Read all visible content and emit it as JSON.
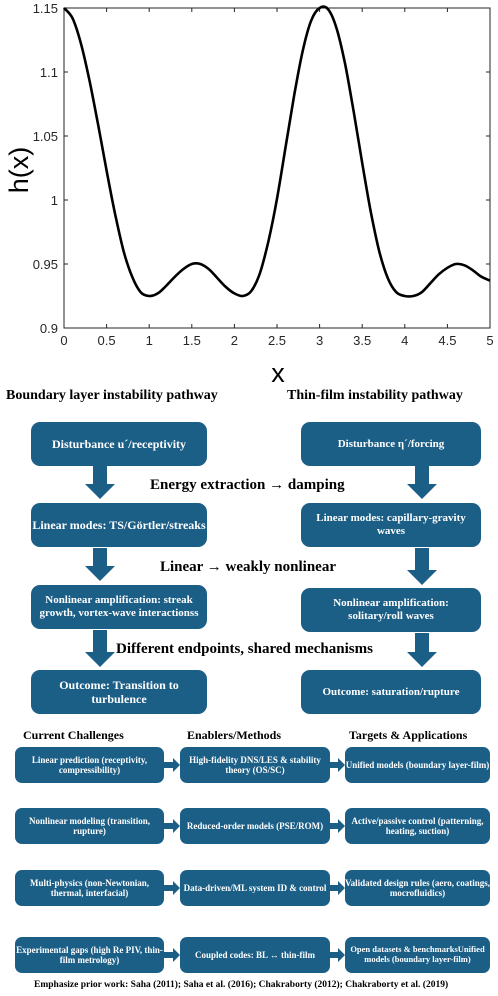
{
  "chart_data": {
    "type": "line",
    "ylabel": "h(x)",
    "xlabel": "x",
    "xlim": [
      0,
      5
    ],
    "ylim": [
      0.9,
      1.15
    ],
    "xticks": [
      "0",
      "0.5",
      "1",
      "1.5",
      "2",
      "2.5",
      "3",
      "3.5",
      "4",
      "4.5",
      "5"
    ],
    "yticks": [
      "0.9",
      "0.95",
      "1",
      "1.05",
      "1.1",
      "1.15"
    ],
    "grid": false,
    "line_color": "#000000",
    "series": [
      {
        "x": [
          0,
          0.1,
          0.2,
          0.3,
          0.4,
          0.5,
          0.6,
          0.7,
          0.8,
          0.9,
          1.0,
          1.1,
          1.2,
          1.3,
          1.4,
          1.5,
          1.6,
          1.7,
          1.8,
          1.9,
          2.0,
          2.1,
          2.2,
          2.3,
          2.4,
          2.5,
          2.6,
          2.7,
          2.8,
          2.9,
          3.0,
          3.1,
          3.2,
          3.3,
          3.4,
          3.5,
          3.6,
          3.7,
          3.8,
          3.9,
          4.0,
          4.1,
          4.2,
          4.3,
          4.4,
          4.5,
          4.6,
          4.7,
          4.8,
          4.9,
          5.0
        ],
        "y": [
          1.15,
          1.142,
          1.122,
          1.093,
          1.059,
          1.023,
          0.989,
          0.96,
          0.94,
          0.928,
          0.925,
          0.927,
          0.933,
          0.94,
          0.946,
          0.95,
          0.95,
          0.946,
          0.939,
          0.932,
          0.927,
          0.925,
          0.929,
          0.943,
          0.968,
          1.001,
          1.041,
          1.081,
          1.116,
          1.14,
          1.15,
          1.149,
          1.134,
          1.106,
          1.069,
          1.029,
          0.991,
          0.96,
          0.939,
          0.928,
          0.925,
          0.925,
          0.928,
          0.935,
          0.942,
          0.947,
          0.95,
          0.949,
          0.945,
          0.94,
          0.937
        ]
      }
    ]
  },
  "pathways": {
    "left_title": "Boundary layer instability pathway",
    "right_title": "Thin-film instability pathway",
    "left": [
      "Disturbance u´/receptivity",
      "Linear modes: TS/Görtler/streaks",
      "Nonlinear amplification: streak growth, vortex-wave interactionss",
      "Outcome: Transition to turbulence"
    ],
    "right": [
      "Disturbance η´/forcing",
      "Linear modes: capillary-gravity waves",
      "Nonlinear amplification: solitary/roll waves",
      "Outcome: saturation/rupture"
    ],
    "middle_labels": [
      "Energy extraction → damping",
      "Linear → weakly nonlinear",
      "Different endpoints, shared mechanisms"
    ]
  },
  "roadmap": {
    "headers": [
      "Current Challenges",
      "Enablers/Methods",
      "Targets & Applications"
    ],
    "rows": [
      [
        "Linear prediction (receptivity, compressibility)",
        "High-fidelity DNS/LES & stability theory (OS/SC)",
        "Unified models (boundary layer-film)"
      ],
      [
        "Nonlinear modeling (transition, rupture)",
        "Reduced-order models (PSE/ROM)",
        "Active/passive control (patterning, heating, suction)"
      ],
      [
        "Multi-physics (non-Newtonian, thermal, interfacial)",
        "Data-driven/ML system ID & control",
        "Validated design rules (aero, coatings, mocrofluidics)"
      ],
      [
        "Experimental gaps (high Re PIV, thin-film metrology)",
        "Coupled codes: BL ↔ thin-film",
        "Open datasets & benchmarksUnified models (boundary layer-film)"
      ]
    ],
    "footer": "Emphasize prior work: Saha (2011); Saha et al. (2016); Chakraborty (2012); Chakraborty et al. (2019)"
  },
  "colors": {
    "box_fill": "#1b5e86",
    "arrow_fill": "#1b5e86",
    "box_text": "#ffffff"
  }
}
